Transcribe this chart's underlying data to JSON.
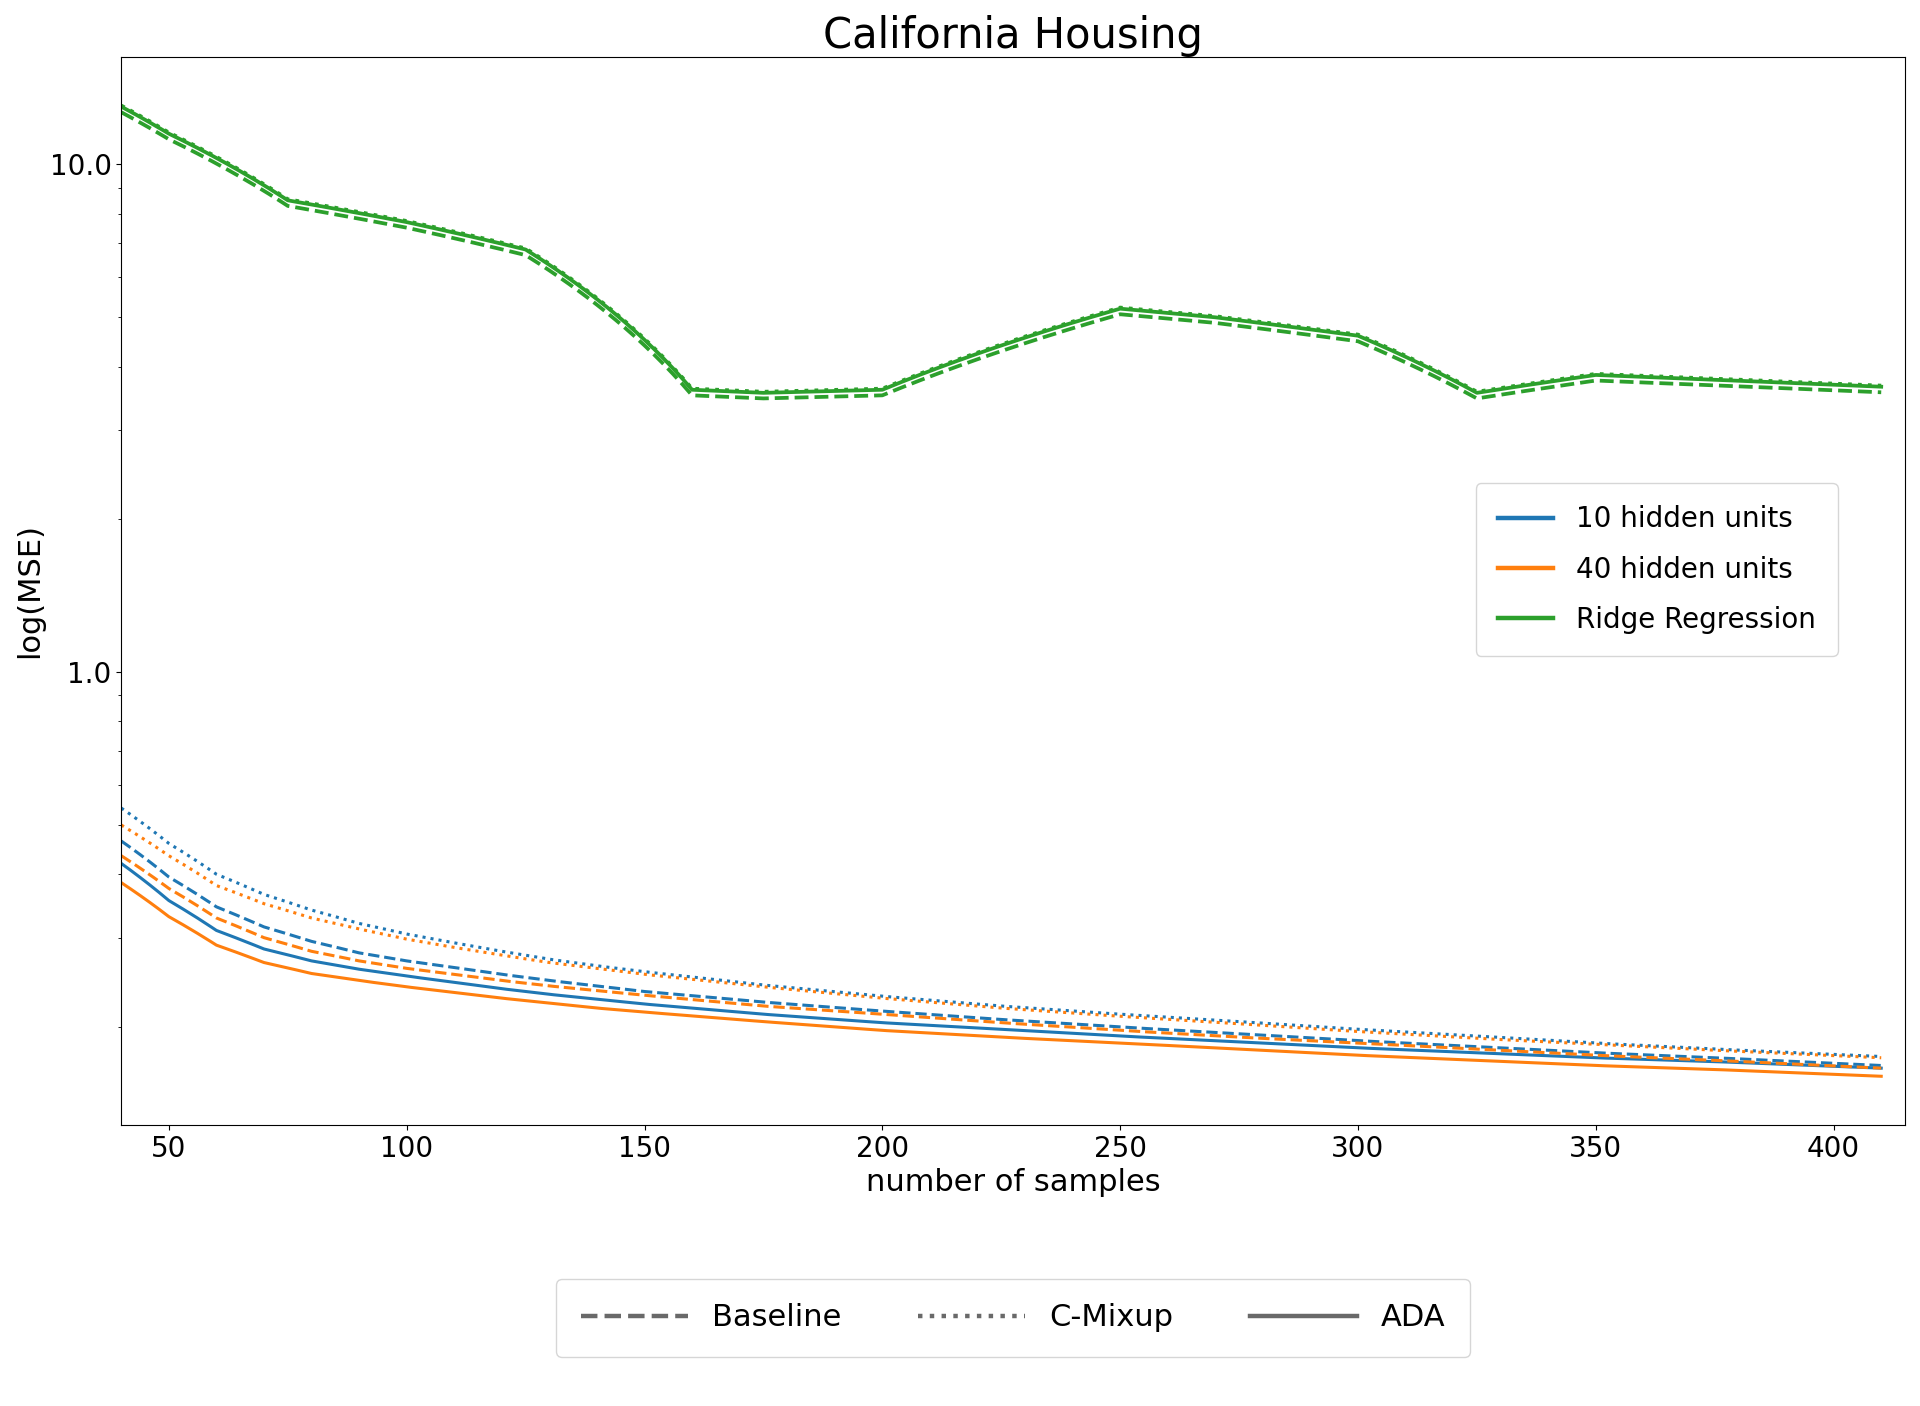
{
  "title": "California Housing",
  "xlabel": "number of samples",
  "ylabel": "log(MSE)",
  "colors": {
    "blue": "#1f77b4",
    "orange": "#ff7f0e",
    "green": "#2ca02c"
  },
  "title_fontsize": 30,
  "axis_label_fontsize": 22,
  "tick_fontsize": 20,
  "legend_fontsize": 20,
  "ridge_x": [
    40,
    50,
    75,
    100,
    125,
    160,
    175,
    200,
    250,
    270,
    300,
    325,
    350,
    380,
    410
  ],
  "ridge_y_ada": [
    13.0,
    11.5,
    8.5,
    7.7,
    6.8,
    3.6,
    3.55,
    3.6,
    5.2,
    5.0,
    4.6,
    3.55,
    3.85,
    3.75,
    3.65
  ],
  "nn_x": [
    40,
    50,
    60,
    70,
    80,
    90,
    100,
    110,
    120,
    130,
    140,
    150,
    175,
    200,
    225,
    250,
    275,
    300,
    325,
    350,
    375,
    410
  ],
  "blue_ada": [
    0.42,
    0.355,
    0.31,
    0.285,
    0.27,
    0.26,
    0.252,
    0.245,
    0.238,
    0.232,
    0.227,
    0.222,
    0.212,
    0.204,
    0.198,
    0.192,
    0.187,
    0.182,
    0.178,
    0.174,
    0.171,
    0.166
  ],
  "blue_base": [
    0.465,
    0.395,
    0.345,
    0.315,
    0.295,
    0.28,
    0.27,
    0.262,
    0.254,
    0.247,
    0.241,
    0.235,
    0.224,
    0.215,
    0.207,
    0.2,
    0.194,
    0.188,
    0.183,
    0.178,
    0.174,
    0.168
  ],
  "blue_cmix": [
    0.54,
    0.46,
    0.4,
    0.365,
    0.34,
    0.32,
    0.305,
    0.293,
    0.282,
    0.272,
    0.264,
    0.257,
    0.242,
    0.23,
    0.22,
    0.212,
    0.205,
    0.198,
    0.192,
    0.186,
    0.181,
    0.175
  ],
  "ora_ada": [
    0.385,
    0.33,
    0.29,
    0.268,
    0.255,
    0.247,
    0.24,
    0.234,
    0.228,
    0.223,
    0.218,
    0.214,
    0.205,
    0.197,
    0.191,
    0.186,
    0.181,
    0.176,
    0.172,
    0.168,
    0.165,
    0.16
  ],
  "ora_base": [
    0.435,
    0.375,
    0.328,
    0.3,
    0.282,
    0.27,
    0.261,
    0.254,
    0.247,
    0.241,
    0.236,
    0.231,
    0.22,
    0.212,
    0.204,
    0.197,
    0.191,
    0.186,
    0.181,
    0.176,
    0.172,
    0.166
  ],
  "ora_cmix": [
    0.5,
    0.435,
    0.38,
    0.35,
    0.328,
    0.312,
    0.298,
    0.287,
    0.277,
    0.268,
    0.261,
    0.254,
    0.24,
    0.228,
    0.218,
    0.21,
    0.203,
    0.196,
    0.19,
    0.185,
    0.18,
    0.174
  ]
}
